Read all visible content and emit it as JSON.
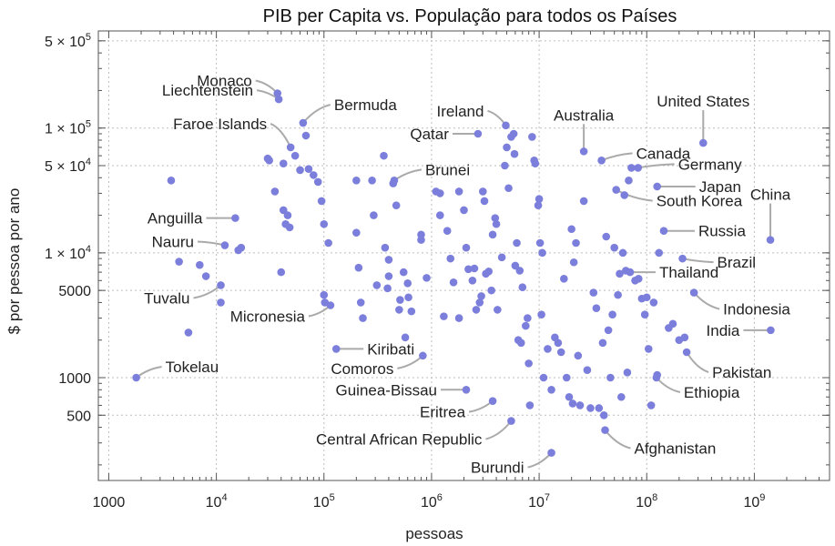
{
  "chart_data": {
    "type": "scatter",
    "title": "PIB per Capita vs. População para todos os Países",
    "xlabel": "pessoas",
    "ylabel": "$ por pessoa por ano",
    "x_scale": "log",
    "y_scale": "log",
    "xlim": [
      800,
      5000000000
    ],
    "ylim": [
      150,
      600000
    ],
    "grid": true,
    "point_color": "#7b7fdb",
    "x_ticks": [
      {
        "value": 1000,
        "base": "1000",
        "exp": ""
      },
      {
        "value": 10000,
        "base": "10",
        "exp": "4"
      },
      {
        "value": 100000,
        "base": "10",
        "exp": "5"
      },
      {
        "value": 1000000,
        "base": "10",
        "exp": "6"
      },
      {
        "value": 10000000,
        "base": "10",
        "exp": "7"
      },
      {
        "value": 100000000,
        "base": "10",
        "exp": "8"
      },
      {
        "value": 1000000000,
        "base": "10",
        "exp": "9"
      }
    ],
    "y_ticks": [
      {
        "value": 500,
        "text": "500"
      },
      {
        "value": 1000,
        "text": "1000"
      },
      {
        "value": 5000,
        "text": "5000"
      },
      {
        "value": 10000,
        "text": "1 × 10",
        "exp": "4"
      },
      {
        "value": 50000,
        "text": "5 × 10",
        "exp": "4"
      },
      {
        "value": 100000,
        "text": "1 × 10",
        "exp": "5"
      },
      {
        "value": 500000,
        "text": "5 × 10",
        "exp": "5"
      }
    ],
    "labeled_points": [
      {
        "name": "Monaco",
        "x": 37000,
        "y": 190000
      },
      {
        "name": "Liechtenstein",
        "x": 38000,
        "y": 170000
      },
      {
        "name": "Bermuda",
        "x": 64000,
        "y": 110000
      },
      {
        "name": "Faroe Islands",
        "x": 49000,
        "y": 70000
      },
      {
        "name": "Ireland",
        "x": 4900000,
        "y": 105000
      },
      {
        "name": "Qatar",
        "x": 2700000,
        "y": 90000
      },
      {
        "name": "Australia",
        "x": 26000000,
        "y": 65000
      },
      {
        "name": "United States",
        "x": 335000000,
        "y": 76000
      },
      {
        "name": "Canada",
        "x": 38000000,
        "y": 55000
      },
      {
        "name": "Brunei",
        "x": 450000,
        "y": 38000
      },
      {
        "name": "Germany",
        "x": 83000000,
        "y": 48000
      },
      {
        "name": "Japan",
        "x": 125000000,
        "y": 34000
      },
      {
        "name": "South Korea",
        "x": 52000000,
        "y": 32000
      },
      {
        "name": "China",
        "x": 1410000000,
        "y": 12700
      },
      {
        "name": "Russia",
        "x": 144000000,
        "y": 15000
      },
      {
        "name": "Anguilla",
        "x": 15000,
        "y": 19000
      },
      {
        "name": "Nauru",
        "x": 12000,
        "y": 11500
      },
      {
        "name": "Brazil",
        "x": 215000000,
        "y": 9000
      },
      {
        "name": "Thailand",
        "x": 70000000,
        "y": 7000
      },
      {
        "name": "Tuvalu",
        "x": 11000,
        "y": 5500
      },
      {
        "name": "Indonesia",
        "x": 275000000,
        "y": 4800
      },
      {
        "name": "Micronesia",
        "x": 115000,
        "y": 3800
      },
      {
        "name": "India",
        "x": 1420000000,
        "y": 2400
      },
      {
        "name": "Kiribati",
        "x": 130000,
        "y": 1700
      },
      {
        "name": "Pakistan",
        "x": 235000000,
        "y": 1600
      },
      {
        "name": "Tokelau",
        "x": 1800,
        "y": 1000
      },
      {
        "name": "Comoros",
        "x": 830000,
        "y": 1500
      },
      {
        "name": "Ethiopia",
        "x": 123000000,
        "y": 1000
      },
      {
        "name": "Guinea-Bissau",
        "x": 2100000,
        "y": 800
      },
      {
        "name": "Eritrea",
        "x": 3700000,
        "y": 650
      },
      {
        "name": "Central African Republic",
        "x": 5500000,
        "y": 450
      },
      {
        "name": "Afghanistan",
        "x": 41000000,
        "y": 380
      },
      {
        "name": "Burundi",
        "x": 13000000,
        "y": 250
      }
    ],
    "other_points": [
      [
        3800,
        38000
      ],
      [
        4500,
        8500
      ],
      [
        5500,
        2300
      ],
      [
        7000,
        8000
      ],
      [
        8000,
        6500
      ],
      [
        11000,
        4000
      ],
      [
        16000,
        10500
      ],
      [
        17000,
        11000
      ],
      [
        31000,
        55000
      ],
      [
        30000,
        57000
      ],
      [
        35000,
        31000
      ],
      [
        42000,
        52000
      ],
      [
        42000,
        22000
      ],
      [
        44000,
        17000
      ],
      [
        46000,
        20000
      ],
      [
        48000,
        16000
      ],
      [
        40000,
        7000
      ],
      [
        54000,
        60000
      ],
      [
        60000,
        46000
      ],
      [
        68000,
        87000
      ],
      [
        72000,
        47000
      ],
      [
        80000,
        42000
      ],
      [
        88000,
        37000
      ],
      [
        95000,
        26000
      ],
      [
        100000,
        17000
      ],
      [
        100000,
        4600
      ],
      [
        102000,
        4000
      ],
      [
        110000,
        12000
      ],
      [
        200000,
        38000
      ],
      [
        200000,
        14500
      ],
      [
        210000,
        7600
      ],
      [
        220000,
        4000
      ],
      [
        230000,
        3000
      ],
      [
        280000,
        38000
      ],
      [
        290000,
        20000
      ],
      [
        310000,
        5500
      ],
      [
        360000,
        60000
      ],
      [
        370000,
        11000
      ],
      [
        390000,
        5200
      ],
      [
        400000,
        8800
      ],
      [
        400000,
        6500
      ],
      [
        440000,
        36000
      ],
      [
        470000,
        24000
      ],
      [
        500000,
        3500
      ],
      [
        510000,
        4200
      ],
      [
        550000,
        7000
      ],
      [
        570000,
        2100
      ],
      [
        600000,
        5700
      ],
      [
        610000,
        4400
      ],
      [
        650000,
        3400
      ],
      [
        800000,
        14000
      ],
      [
        800000,
        12700
      ],
      [
        900000,
        6300
      ],
      [
        1100000,
        31000
      ],
      [
        1200000,
        30000
      ],
      [
        1200000,
        20000
      ],
      [
        1300000,
        3100
      ],
      [
        1400000,
        15000
      ],
      [
        1500000,
        9000
      ],
      [
        1600000,
        5800
      ],
      [
        1800000,
        31000
      ],
      [
        1800000,
        3000
      ],
      [
        2000000,
        22000
      ],
      [
        2100000,
        11000
      ],
      [
        2200000,
        7400
      ],
      [
        2400000,
        6000
      ],
      [
        2500000,
        7500
      ],
      [
        2600000,
        3500
      ],
      [
        2800000,
        4000
      ],
      [
        2900000,
        4500
      ],
      [
        3000000,
        31000
      ],
      [
        3100000,
        26000
      ],
      [
        3200000,
        6800
      ],
      [
        3400000,
        7100
      ],
      [
        3600000,
        5000
      ],
      [
        3700000,
        14000
      ],
      [
        3900000,
        19000
      ],
      [
        4000000,
        17000
      ],
      [
        4100000,
        3500
      ],
      [
        4500000,
        9200
      ],
      [
        4800000,
        50000
      ],
      [
        5000000,
        70000
      ],
      [
        5200000,
        33000
      ],
      [
        5500000,
        85000
      ],
      [
        5800000,
        90000
      ],
      [
        5900000,
        62000
      ],
      [
        6000000,
        7900
      ],
      [
        6200000,
        12000
      ],
      [
        6400000,
        2000
      ],
      [
        6600000,
        7200
      ],
      [
        6800000,
        1900
      ],
      [
        7000000,
        5300
      ],
      [
        7500000,
        2600
      ],
      [
        7800000,
        3000
      ],
      [
        8000000,
        1300
      ],
      [
        8200000,
        600
      ],
      [
        8600000,
        85000
      ],
      [
        9000000,
        55000
      ],
      [
        9200000,
        52000
      ],
      [
        9800000,
        24000
      ],
      [
        10000000,
        27000
      ],
      [
        10200000,
        12000
      ],
      [
        10500000,
        3200
      ],
      [
        10700000,
        10000
      ],
      [
        11000000,
        1000
      ],
      [
        12000000,
        1700
      ],
      [
        13000000,
        800
      ],
      [
        14000000,
        2100
      ],
      [
        15000000,
        1900
      ],
      [
        16000000,
        1600
      ],
      [
        17000000,
        6200
      ],
      [
        18000000,
        1000
      ],
      [
        19000000,
        700
      ],
      [
        20000000,
        15500
      ],
      [
        20500000,
        620
      ],
      [
        21000000,
        8400
      ],
      [
        22000000,
        12000
      ],
      [
        23000000,
        1500
      ],
      [
        24000000,
        600
      ],
      [
        26000000,
        26000
      ],
      [
        28000000,
        1150
      ],
      [
        30000000,
        570
      ],
      [
        32000000,
        4800
      ],
      [
        34000000,
        3600
      ],
      [
        36000000,
        570
      ],
      [
        39000000,
        1900
      ],
      [
        40000000,
        500
      ],
      [
        42000000,
        13500
      ],
      [
        44000000,
        2400
      ],
      [
        46000000,
        1000
      ],
      [
        48000000,
        3200
      ],
      [
        50000000,
        11000
      ],
      [
        54000000,
        4600
      ],
      [
        56000000,
        6800
      ],
      [
        58000000,
        700
      ],
      [
        60000000,
        10000
      ],
      [
        62000000,
        29000
      ],
      [
        64000000,
        7200
      ],
      [
        66000000,
        1100
      ],
      [
        68000000,
        38000
      ],
      [
        72000000,
        48000
      ],
      [
        78000000,
        6000
      ],
      [
        84000000,
        6200
      ],
      [
        90000000,
        4300
      ],
      [
        96000000,
        3200
      ],
      [
        100000000,
        4400
      ],
      [
        104000000,
        1700
      ],
      [
        110000000,
        600
      ],
      [
        116000000,
        4000
      ],
      [
        125000000,
        1050
      ],
      [
        130000000,
        10000
      ],
      [
        160000000,
        2500
      ],
      [
        175000000,
        2700
      ],
      [
        200000000,
        2000
      ],
      [
        225000000,
        2100
      ]
    ]
  }
}
